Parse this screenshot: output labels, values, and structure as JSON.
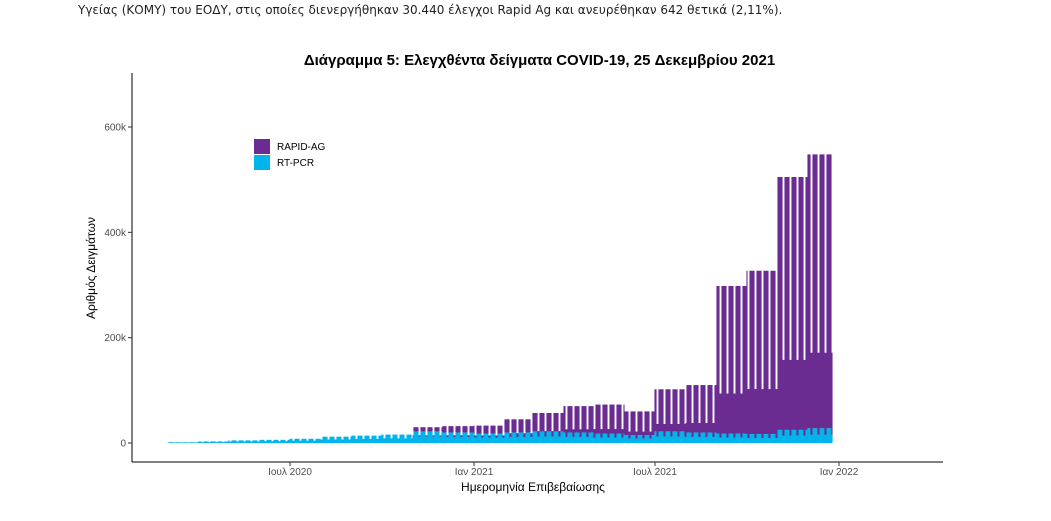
{
  "intro_text": "Υγείας (ΚΟΜΥ) του ΕΟΔΥ, στις οποίες διενεργήθηκαν 30.440 έλεγχοι Rapid Ag και ανευρέθηκαν 642 θετικά (2,11%).",
  "chart_data": {
    "type": "bar",
    "stacked": true,
    "title": "Διάγραμμα 5: Ελεγχθέντα δείγματα COVID-19, 25 Δεκεμβρίου 2021",
    "xlabel": "Ημερομηνία Επιβεβαίωσης",
    "ylabel": "Αριθμός Δειγμάτων",
    "x_range": [
      "2020-03-01",
      "2021-12-25"
    ],
    "ylim": [
      0,
      700000
    ],
    "y_ticks": [
      0,
      200000,
      400000,
      600000
    ],
    "y_tick_labels": [
      "0",
      "200k",
      "400k",
      "600k"
    ],
    "x_ticks": [
      "2020-07-01",
      "2021-01-01",
      "2021-07-01",
      "2022-01-01"
    ],
    "x_tick_labels": [
      "Ιουλ 2020",
      "Ιαν 2021",
      "Ιουλ 2021",
      "Ιαν 2022"
    ],
    "legend_position": "top-left",
    "grid": false,
    "series": [
      {
        "name": "RAPID-AG",
        "color": "#6a2c91",
        "stack_order": "top"
      },
      {
        "name": "RT-PCR",
        "color": "#00b4ec",
        "stack_order": "bottom"
      }
    ],
    "daily_data": {
      "encoding": "weekly profile: value = weekday_value for Mon-Fri, value * weekend_factor for Sat/Sun (approximate readings)",
      "weekend_factor_rapid": 0.3,
      "weekend_factor_pcr": 0.55,
      "rapid_ag_weekday_by_month": [
        [
          "2020-03",
          0
        ],
        [
          "2020-04",
          0
        ],
        [
          "2020-05",
          0
        ],
        [
          "2020-06",
          0
        ],
        [
          "2020-07",
          0
        ],
        [
          "2020-08",
          0
        ],
        [
          "2020-09",
          0
        ],
        [
          "2020-10",
          0
        ],
        [
          "2020-11",
          8000
        ],
        [
          "2020-12",
          12000
        ],
        [
          "2021-01",
          15000
        ],
        [
          "2021-02",
          25000
        ],
        [
          "2021-03",
          35000
        ],
        [
          "2021-04",
          50000
        ],
        [
          "2021-05",
          55000
        ],
        [
          "2021-06",
          45000
        ],
        [
          "2021-07",
          80000
        ],
        [
          "2021-08",
          90000
        ],
        [
          "2021-09",
          280000
        ],
        [
          "2021-10",
          310000
        ],
        [
          "2021-11",
          480000
        ],
        [
          "2021-12",
          520000
        ]
      ],
      "rt_pcr_weekday_by_month": [
        [
          "2020-03",
          1500
        ],
        [
          "2020-04",
          3000
        ],
        [
          "2020-05",
          5000
        ],
        [
          "2020-06",
          6000
        ],
        [
          "2020-07",
          8000
        ],
        [
          "2020-08",
          12000
        ],
        [
          "2020-09",
          14000
        ],
        [
          "2020-10",
          16000
        ],
        [
          "2020-11",
          22000
        ],
        [
          "2020-12",
          20000
        ],
        [
          "2021-01",
          18000
        ],
        [
          "2021-02",
          20000
        ],
        [
          "2021-03",
          22000
        ],
        [
          "2021-04",
          20000
        ],
        [
          "2021-05",
          18000
        ],
        [
          "2021-06",
          15000
        ],
        [
          "2021-07",
          22000
        ],
        [
          "2021-08",
          20000
        ],
        [
          "2021-09",
          18000
        ],
        [
          "2021-10",
          17000
        ],
        [
          "2021-11",
          25000
        ],
        [
          "2021-12",
          28000
        ]
      ]
    }
  }
}
